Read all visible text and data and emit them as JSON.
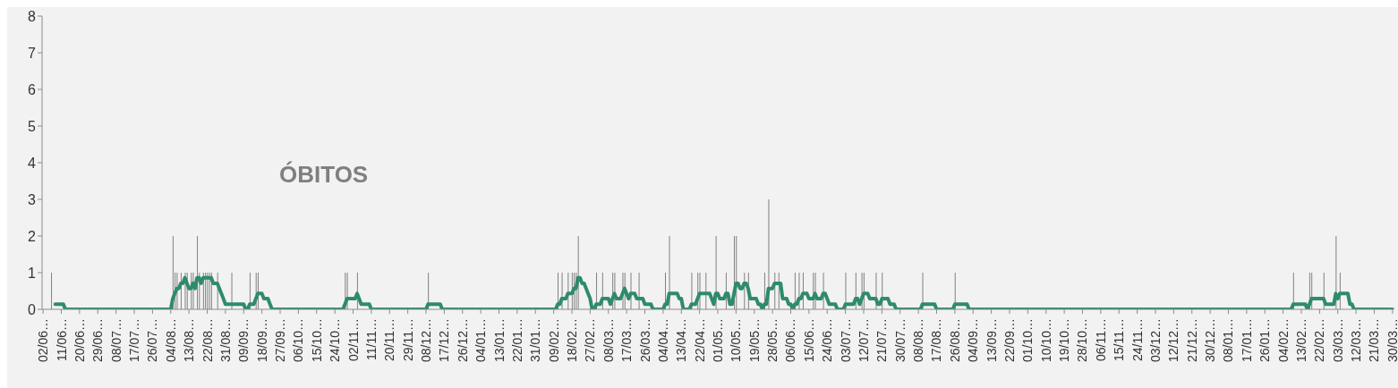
{
  "chart_data": {
    "type": "bar",
    "title": "ÓBITOS",
    "grid": false,
    "marker": "none",
    "line_style": "solid",
    "ylim": [
      0,
      8
    ],
    "yticks": [
      0,
      1,
      2,
      3,
      4,
      5,
      6,
      7,
      8
    ],
    "categories": [
      "02/06…",
      null,
      null,
      null,
      null,
      null,
      null,
      null,
      null,
      "11/06…",
      null,
      null,
      null,
      null,
      null,
      null,
      null,
      null,
      "20/06…",
      null,
      null,
      null,
      null,
      null,
      null,
      null,
      null,
      "29/06…",
      null,
      null,
      null,
      null,
      null,
      null,
      null,
      null,
      "08/07…",
      null,
      null,
      null,
      null,
      null,
      null,
      null,
      null,
      "17/07…",
      null,
      null,
      null,
      null,
      null,
      null,
      null,
      null,
      "26/07…",
      null,
      null,
      null,
      null,
      null,
      null,
      null,
      null,
      "04/08…",
      null,
      null,
      null,
      null,
      null,
      null,
      null,
      null,
      "13/08…",
      null,
      null,
      null,
      null,
      null,
      null,
      null,
      null,
      "22/08…",
      null,
      null,
      null,
      null,
      null,
      null,
      null,
      null,
      "31/08…",
      null,
      null,
      null,
      null,
      null,
      null,
      null,
      null,
      "09/09…",
      null,
      null,
      null,
      null,
      null,
      null,
      null,
      null,
      "18/09…",
      null,
      null,
      null,
      null,
      null,
      null,
      null,
      null,
      "27/09…",
      null,
      null,
      null,
      null,
      null,
      null,
      null,
      null,
      "06/10…",
      null,
      null,
      null,
      null,
      null,
      null,
      null,
      null,
      "15/10…",
      null,
      null,
      null,
      null,
      null,
      null,
      null,
      null,
      "24/10…",
      null,
      null,
      null,
      null,
      null,
      null,
      null,
      null,
      "02/11…",
      null,
      null,
      null,
      null,
      null,
      null,
      null,
      null,
      "11/11…",
      null,
      null,
      null,
      null,
      null,
      null,
      null,
      null,
      "20/11…",
      null,
      null,
      null,
      null,
      null,
      null,
      null,
      null,
      "29/11…",
      null,
      null,
      null,
      null,
      null,
      null,
      null,
      null,
      "08/12…",
      null,
      null,
      null,
      null,
      null,
      null,
      null,
      null,
      "17/12…",
      null,
      null,
      null,
      null,
      null,
      null,
      null,
      null,
      "26/12…",
      null,
      null,
      null,
      null,
      null,
      null,
      null,
      null,
      "04/01…",
      null,
      null,
      null,
      null,
      null,
      null,
      null,
      null,
      "13/01…",
      null,
      null,
      null,
      null,
      null,
      null,
      null,
      null,
      "22/01…",
      null,
      null,
      null,
      null,
      null,
      null,
      null,
      null,
      "31/01…",
      null,
      null,
      null,
      null,
      null,
      null,
      null,
      null,
      "09/02…",
      null,
      null,
      null,
      null,
      null,
      null,
      null,
      null,
      "18/02…",
      null,
      null,
      null,
      null,
      null,
      null,
      null,
      null,
      "27/02…",
      null,
      null,
      null,
      null,
      null,
      null,
      null,
      null,
      "08/03…",
      null,
      null,
      null,
      null,
      null,
      null,
      null,
      null,
      "17/03…",
      null,
      null,
      null,
      null,
      null,
      null,
      null,
      null,
      "26/03…",
      null,
      null,
      null,
      null,
      null,
      null,
      null,
      null,
      "04/04…",
      null,
      null,
      null,
      null,
      null,
      null,
      null,
      null,
      "13/04…",
      null,
      null,
      null,
      null,
      null,
      null,
      null,
      null,
      "22/04…",
      null,
      null,
      null,
      null,
      null,
      null,
      null,
      null,
      "01/05…",
      null,
      null,
      null,
      null,
      null,
      null,
      null,
      null,
      "10/05…",
      null,
      null,
      null,
      null,
      null,
      null,
      null,
      null,
      "19/05…",
      null,
      null,
      null,
      null,
      null,
      null,
      null,
      null,
      "28/05…",
      null,
      null,
      null,
      null,
      null,
      null,
      null,
      null,
      "06/06…",
      null,
      null,
      null,
      null,
      null,
      null,
      null,
      null,
      "15/06…",
      null,
      null,
      null,
      null,
      null,
      null,
      null,
      null,
      "24/06…",
      null,
      null,
      null,
      null,
      null,
      null,
      null,
      null,
      "03/07…",
      null,
      null,
      null,
      null,
      null,
      null,
      null,
      null,
      "12/07…",
      null,
      null,
      null,
      null,
      null,
      null,
      null,
      null,
      "21/07…",
      null,
      null,
      null,
      null,
      null,
      null,
      null,
      null,
      "30/07…",
      null,
      null,
      null,
      null,
      null,
      null,
      null,
      null,
      "08/08…",
      null,
      null,
      null,
      null,
      null,
      null,
      null,
      null,
      "17/08…",
      null,
      null,
      null,
      null,
      null,
      null,
      null,
      null,
      "26/08…",
      null,
      null,
      null,
      null,
      null,
      null,
      null,
      null,
      "04/09…",
      null,
      null,
      null,
      null,
      null,
      null,
      null,
      null,
      "13/09…",
      null,
      null,
      null,
      null,
      null,
      null,
      null,
      null,
      "22/09…",
      null,
      null,
      null,
      null,
      null,
      null,
      null,
      null,
      "01/10…",
      null,
      null,
      null,
      null,
      null,
      null,
      null,
      null,
      "10/10…",
      null,
      null,
      null,
      null,
      null,
      null,
      null,
      null,
      "19/10…",
      null,
      null,
      null,
      null,
      null,
      null,
      null,
      null,
      "28/10…",
      null,
      null,
      null,
      null,
      null,
      null,
      null,
      null,
      "06/11…",
      null,
      null,
      null,
      null,
      null,
      null,
      null,
      null,
      "15/11…",
      null,
      null,
      null,
      null,
      null,
      null,
      null,
      null,
      "24/11…",
      null,
      null,
      null,
      null,
      null,
      null,
      null,
      null,
      "03/12…",
      null,
      null,
      null,
      null,
      null,
      null,
      null,
      null,
      "12/12…",
      null,
      null,
      null,
      null,
      null,
      null,
      null,
      null,
      "21/12…",
      null,
      null,
      null,
      null,
      null,
      null,
      null,
      null,
      "30/12…",
      null,
      null,
      null,
      null,
      null,
      null,
      null,
      null,
      "08/01…",
      null,
      null,
      null,
      null,
      null,
      null,
      null,
      null,
      "17/01…",
      null,
      null,
      null,
      null,
      null,
      null,
      null,
      null,
      "26/01…",
      null,
      null,
      null,
      null,
      null,
      null,
      null,
      null,
      "04/02…",
      null,
      null,
      null,
      null,
      null,
      null,
      null,
      null,
      "13/02…",
      null,
      null,
      null,
      null,
      null,
      null,
      null,
      null,
      "22/02…",
      null,
      null,
      null,
      null,
      null,
      null,
      null,
      null,
      "03/03…",
      null,
      null,
      null,
      null,
      null,
      null,
      null,
      null,
      "12/03…",
      null,
      null,
      null,
      null,
      null,
      null,
      null,
      null,
      "21/03…",
      null,
      null,
      null,
      null,
      null,
      null,
      null,
      null,
      "30/03…"
    ],
    "series": [
      {
        "color": "#808080",
        "values": [
          0,
          0,
          0,
          0,
          1,
          0,
          0,
          0,
          0,
          0,
          0,
          0,
          0,
          0,
          0,
          0,
          0,
          0,
          0,
          0,
          0,
          0,
          0,
          0,
          0,
          0,
          0,
          0,
          0,
          0,
          0,
          0,
          0,
          0,
          0,
          0,
          0,
          0,
          0,
          0,
          0,
          0,
          0,
          0,
          0,
          0,
          0,
          0,
          0,
          0,
          0,
          0,
          0,
          0,
          0,
          0,
          0,
          0,
          0,
          0,
          0,
          0,
          0,
          0,
          2,
          1,
          1,
          0,
          1,
          0,
          1,
          1,
          0,
          1,
          1,
          0,
          2,
          1,
          0,
          1,
          1,
          1,
          1,
          1,
          0,
          0,
          1,
          0,
          0,
          0,
          0,
          0,
          0,
          1,
          0,
          0,
          0,
          0,
          0,
          0,
          0,
          0,
          1,
          0,
          0,
          1,
          1,
          0,
          0,
          0,
          0,
          0,
          0,
          0,
          0,
          0,
          0,
          0,
          0,
          0,
          0,
          0,
          0,
          0,
          0,
          0,
          0,
          0,
          0,
          0,
          0,
          0,
          0,
          0,
          0,
          0,
          0,
          0,
          0,
          0,
          0,
          0,
          0,
          0,
          0,
          0,
          0,
          0,
          0,
          1,
          1,
          0,
          0,
          0,
          0,
          1,
          0,
          0,
          0,
          0,
          0,
          0,
          0,
          0,
          0,
          0,
          0,
          0,
          0,
          0,
          0,
          0,
          0,
          0,
          0,
          0,
          0,
          0,
          0,
          0,
          0,
          0,
          0,
          0,
          0,
          0,
          0,
          0,
          0,
          0,
          1,
          0,
          0,
          0,
          0,
          0,
          0,
          0,
          0,
          0,
          0,
          0,
          0,
          0,
          0,
          0,
          0,
          0,
          0,
          0,
          0,
          0,
          0,
          0,
          0,
          0,
          0,
          0,
          0,
          0,
          0,
          0,
          0,
          0,
          0,
          0,
          0,
          0,
          0,
          0,
          0,
          0,
          0,
          0,
          0,
          0,
          0,
          0,
          0,
          0,
          0,
          0,
          0,
          0,
          0,
          0,
          0,
          0,
          0,
          0,
          0,
          0,
          0,
          0,
          1,
          0,
          1,
          0,
          0,
          1,
          0,
          1,
          1,
          1,
          2,
          0,
          0,
          0,
          0,
          0,
          0,
          0,
          0,
          1,
          0,
          0,
          1,
          0,
          0,
          0,
          0,
          1,
          1,
          0,
          0,
          0,
          1,
          1,
          0,
          0,
          1,
          0,
          0,
          0,
          1,
          0,
          0,
          0,
          0,
          0,
          0,
          0,
          0,
          0,
          0,
          0,
          0,
          1,
          0,
          2,
          0,
          0,
          0,
          0,
          0,
          0,
          0,
          0,
          0,
          0,
          1,
          0,
          0,
          1,
          1,
          0,
          0,
          1,
          0,
          0,
          0,
          0,
          2,
          0,
          0,
          0,
          0,
          1,
          0,
          0,
          0,
          2,
          2,
          0,
          0,
          0,
          1,
          0,
          1,
          0,
          0,
          0,
          0,
          0,
          0,
          0,
          1,
          0,
          3,
          0,
          0,
          1,
          0,
          1,
          0,
          0,
          0,
          0,
          0,
          0,
          0,
          1,
          0,
          1,
          0,
          1,
          0,
          0,
          0,
          0,
          1,
          1,
          0,
          0,
          0,
          1,
          0,
          0,
          0,
          0,
          0,
          0,
          0,
          0,
          0,
          0,
          1,
          0,
          0,
          0,
          0,
          1,
          0,
          0,
          1,
          1,
          0,
          0,
          0,
          0,
          0,
          1,
          0,
          0,
          1,
          0,
          0,
          0,
          0,
          0,
          0,
          0,
          0,
          0,
          0,
          0,
          0,
          0,
          0,
          0,
          0,
          0,
          0,
          0,
          1,
          0,
          0,
          0,
          0,
          0,
          0,
          0,
          0,
          0,
          0,
          0,
          0,
          0,
          0,
          0,
          1,
          0,
          0,
          0,
          0,
          0,
          0,
          0,
          0,
          0,
          0,
          0,
          0,
          0,
          0,
          0,
          0,
          0,
          0,
          0,
          0,
          0,
          0,
          0,
          0,
          0,
          0,
          0,
          0,
          0,
          0,
          0,
          0,
          0,
          0,
          0,
          0,
          0,
          0,
          0,
          0,
          0,
          0,
          0,
          0,
          0,
          0,
          0,
          0,
          0,
          0,
          0,
          0,
          0,
          0,
          0,
          0,
          0,
          0,
          0,
          0,
          0,
          0,
          0,
          0,
          0,
          0,
          0,
          0,
          0,
          0,
          0,
          0,
          0,
          0,
          0,
          0,
          0,
          0,
          0,
          0,
          0,
          0,
          0,
          0,
          0,
          0,
          0,
          0,
          0,
          0,
          0,
          0,
          0,
          0,
          0,
          0,
          0,
          0,
          0,
          0,
          0,
          0,
          0,
          0,
          0,
          0,
          0,
          0,
          0,
          0,
          0,
          0,
          0,
          0,
          0,
          0,
          0,
          0,
          0,
          0,
          0,
          0,
          0,
          0,
          0,
          0,
          0,
          0,
          0,
          0,
          0,
          0,
          0,
          0,
          0,
          0,
          0,
          0,
          0,
          0,
          0,
          0,
          0,
          0,
          0,
          0,
          0,
          0,
          0,
          0,
          0,
          0,
          0,
          0,
          0,
          0,
          0,
          0,
          0,
          0,
          0,
          0,
          0,
          0,
          0,
          0,
          1,
          0,
          0,
          0,
          0,
          0,
          0,
          0,
          1,
          1,
          0,
          0,
          0,
          0,
          0,
          1,
          0,
          0,
          0,
          0,
          0,
          2,
          0,
          1,
          0,
          0,
          0,
          0,
          0,
          0,
          0,
          0,
          0,
          0,
          0,
          0,
          0,
          0,
          0,
          0,
          0,
          0,
          0,
          0,
          0,
          0,
          0,
          0,
          0,
          0
        ]
      },
      {
        "type": "line",
        "color": "#2e8b6c",
        "values": [
          null,
          null,
          null,
          null,
          null,
          null,
          0.14,
          0.14,
          0.14,
          0.14,
          0.14,
          0,
          0,
          0,
          0,
          0,
          0,
          0,
          0,
          0,
          0,
          0,
          0,
          0,
          0,
          0,
          0,
          0,
          0,
          0,
          0,
          0,
          0,
          0,
          0,
          0,
          0,
          0,
          0,
          0,
          0,
          0,
          0,
          0,
          0,
          0,
          0,
          0,
          0,
          0,
          0,
          0,
          0,
          0,
          0,
          0,
          0,
          0,
          0,
          0,
          0,
          0,
          0,
          0,
          0.29,
          0.43,
          0.57,
          0.57,
          0.71,
          0.71,
          0.86,
          0.71,
          0.57,
          0.57,
          0.71,
          0.57,
          0.86,
          0.86,
          0.71,
          0.86,
          0.86,
          0.86,
          0.86,
          0.86,
          0.71,
          0.71,
          0.71,
          0.57,
          0.43,
          0.29,
          0.14,
          0.14,
          0.14,
          0.14,
          0.14,
          0.14,
          0.14,
          0.14,
          0.14,
          0.14,
          0,
          0,
          0.14,
          0.14,
          0.14,
          0.29,
          0.43,
          0.43,
          0.43,
          0.29,
          0.29,
          0.29,
          0.14,
          0,
          0,
          0,
          0,
          0,
          0,
          0,
          0,
          0,
          0,
          0,
          0,
          0,
          0,
          0,
          0,
          0,
          0,
          0,
          0,
          0,
          0,
          0,
          0,
          0,
          0,
          0,
          0,
          0,
          0,
          0,
          0,
          0,
          0,
          0,
          0,
          0.14,
          0.29,
          0.29,
          0.29,
          0.29,
          0.29,
          0.43,
          0.29,
          0.14,
          0.14,
          0.14,
          0.14,
          0.14,
          0,
          0,
          0,
          0,
          0,
          0,
          0,
          0,
          0,
          0,
          0,
          0,
          0,
          0,
          0,
          0,
          0,
          0,
          0,
          0,
          0,
          0,
          0,
          0,
          0,
          0,
          0,
          0,
          0.14,
          0.14,
          0.14,
          0.14,
          0.14,
          0.14,
          0.14,
          0,
          0,
          0,
          0,
          0,
          0,
          0,
          0,
          0,
          0,
          0,
          0,
          0,
          0,
          0,
          0,
          0,
          0,
          0,
          0,
          0,
          0,
          0,
          0,
          0,
          0,
          0,
          0,
          0,
          0,
          0,
          0,
          0,
          0,
          0,
          0,
          0,
          0,
          0,
          0,
          0,
          0,
          0,
          0,
          0,
          0,
          0,
          0,
          0,
          0,
          0,
          0,
          0,
          0,
          0,
          0,
          0,
          0.14,
          0.14,
          0.29,
          0.29,
          0.29,
          0.43,
          0.43,
          0.43,
          0.57,
          0.57,
          0.86,
          0.86,
          0.71,
          0.71,
          0.57,
          0.43,
          0.29,
          0,
          0,
          0.14,
          0.14,
          0.14,
          0.29,
          0.29,
          0.29,
          0.29,
          0.14,
          0.29,
          0.43,
          0.29,
          0.29,
          0.29,
          0.43,
          0.57,
          0.43,
          0.29,
          0.43,
          0.43,
          0.43,
          0.29,
          0.29,
          0.29,
          0.29,
          0.14,
          0.14,
          0.14,
          0.14,
          0,
          0,
          0,
          0,
          0,
          0,
          0.14,
          0.14,
          0.43,
          0.43,
          0.43,
          0.43,
          0.43,
          0.29,
          0.29,
          0,
          0,
          0,
          0,
          0.14,
          0.14,
          0.14,
          0.29,
          0.43,
          0.43,
          0.43,
          0.43,
          0.43,
          0.43,
          0.29,
          0.14,
          0.43,
          0.43,
          0.29,
          0.29,
          0.29,
          0.43,
          0.43,
          0.14,
          0.14,
          0.43,
          0.71,
          0.71,
          0.57,
          0.57,
          0.71,
          0.71,
          0.57,
          0.29,
          0.29,
          0.29,
          0.29,
          0.14,
          0.14,
          0,
          0.14,
          0.14,
          0.57,
          0.57,
          0.57,
          0.71,
          0.71,
          0.71,
          0.71,
          0.29,
          0.29,
          0.29,
          0.14,
          0.14,
          0,
          0.14,
          0.14,
          0.29,
          0.29,
          0.43,
          0.43,
          0.43,
          0.29,
          0.29,
          0.29,
          0.43,
          0.29,
          0.29,
          0.29,
          0.43,
          0.43,
          0.29,
          0.14,
          0.14,
          0.14,
          0.14,
          0,
          0,
          0,
          0,
          0.14,
          0.14,
          0.14,
          0.14,
          0.14,
          0.29,
          0.29,
          0.14,
          0.29,
          0.43,
          0.43,
          0.43,
          0.29,
          0.29,
          0.29,
          0.29,
          0.14,
          0.14,
          0.29,
          0.29,
          0.29,
          0.29,
          0.14,
          0.14,
          0.14,
          0,
          0,
          0,
          0,
          0,
          0,
          0,
          0,
          0,
          0,
          0,
          0,
          0,
          0.14,
          0.14,
          0.14,
          0.14,
          0.14,
          0.14,
          0.14,
          0,
          0,
          0,
          0,
          0,
          0,
          0,
          0,
          0,
          0.14,
          0.14,
          0.14,
          0.14,
          0.14,
          0.14,
          0.14,
          0,
          0,
          0,
          0,
          0,
          0,
          0,
          0,
          0,
          0,
          0,
          0,
          0,
          0,
          0,
          0,
          0,
          0,
          0,
          0,
          0,
          0,
          0,
          0,
          0,
          0,
          0,
          0,
          0,
          0,
          0,
          0,
          0,
          0,
          0,
          0,
          0,
          0,
          0,
          0,
          0,
          0,
          0,
          0,
          0,
          0,
          0,
          0,
          0,
          0,
          0,
          0,
          0,
          0,
          0,
          0,
          0,
          0,
          0,
          0,
          0,
          0,
          0,
          0,
          0,
          0,
          0,
          0,
          0,
          0,
          0,
          0,
          0,
          0,
          0,
          0,
          0,
          0,
          0,
          0,
          0,
          0,
          0,
          0,
          0,
          0,
          0,
          0,
          0,
          0,
          0,
          0,
          0,
          0,
          0,
          0,
          0,
          0,
          0,
          0,
          0,
          0,
          0,
          0,
          0,
          0,
          0,
          0,
          0,
          0,
          0,
          0,
          0,
          0,
          0,
          0,
          0,
          0,
          0,
          0,
          0,
          0,
          0,
          0,
          0,
          0,
          0,
          0,
          0,
          0,
          0,
          0,
          0,
          0,
          0,
          0,
          0,
          0,
          0,
          0,
          0,
          0,
          0,
          0,
          0,
          0,
          0,
          0,
          0,
          0,
          0,
          0,
          0,
          0,
          0,
          0,
          0,
          0,
          0,
          0,
          0.14,
          0.14,
          0.14,
          0.14,
          0.14,
          0.14,
          0.14,
          0,
          0.14,
          0.29,
          0.29,
          0.29,
          0.29,
          0.29,
          0.29,
          0.29,
          0.14,
          0.14,
          0.14,
          0.14,
          0.14,
          0.43,
          0.29,
          0.43,
          0.43,
          0.43,
          0.43,
          0.43,
          0.14,
          0.14,
          0,
          0,
          0,
          0,
          0,
          0,
          0,
          0,
          0,
          0,
          0,
          0,
          0,
          0,
          0,
          0,
          0,
          0,
          0,
          0
        ]
      }
    ]
  }
}
